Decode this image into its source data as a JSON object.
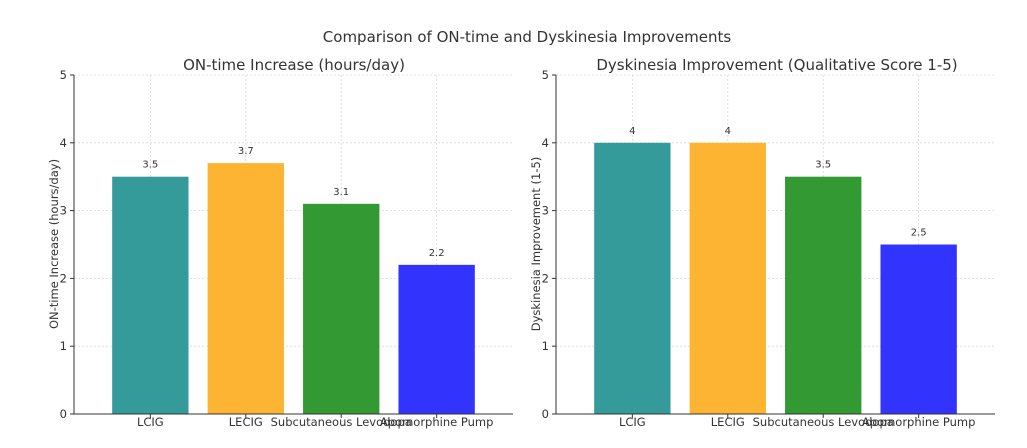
{
  "suptitle": "Comparison of ON-time and Dyskinesia Improvements",
  "chart_data": [
    {
      "type": "bar",
      "title": "ON-time Increase (hours/day)",
      "xlabel": "",
      "ylabel": "ON-time Increase (hours/day)",
      "categories": [
        "LCIG",
        "LECIG",
        "Subcutaneous Levodopa",
        "Apomorphine Pump"
      ],
      "values": [
        3.5,
        3.7,
        3.1,
        2.2
      ],
      "data_labels": [
        "3.5",
        "3.7",
        "3.1",
        "2.2"
      ],
      "colors": [
        "#349a9a",
        "#fdb432",
        "#339933",
        "#3333fe"
      ],
      "ylim": [
        0,
        5
      ],
      "yticks": [
        "0",
        "1",
        "2",
        "3",
        "4",
        "5"
      ],
      "grid": true
    },
    {
      "type": "bar",
      "title": "Dyskinesia Improvement (Qualitative Score 1-5)",
      "xlabel": "",
      "ylabel": "Dyskinesia Improvement (1-5)",
      "categories": [
        "LCIG",
        "LECIG",
        "Subcutaneous Levodopa",
        "Apomorphine Pump"
      ],
      "values": [
        4,
        4,
        3.5,
        2.5
      ],
      "data_labels": [
        "4",
        "4",
        "3.5",
        "2.5"
      ],
      "colors": [
        "#349a9a",
        "#fdb432",
        "#339933",
        "#3333fe"
      ],
      "ylim": [
        0,
        5
      ],
      "yticks": [
        "0",
        "1",
        "2",
        "3",
        "4",
        "5"
      ],
      "grid": true
    }
  ]
}
